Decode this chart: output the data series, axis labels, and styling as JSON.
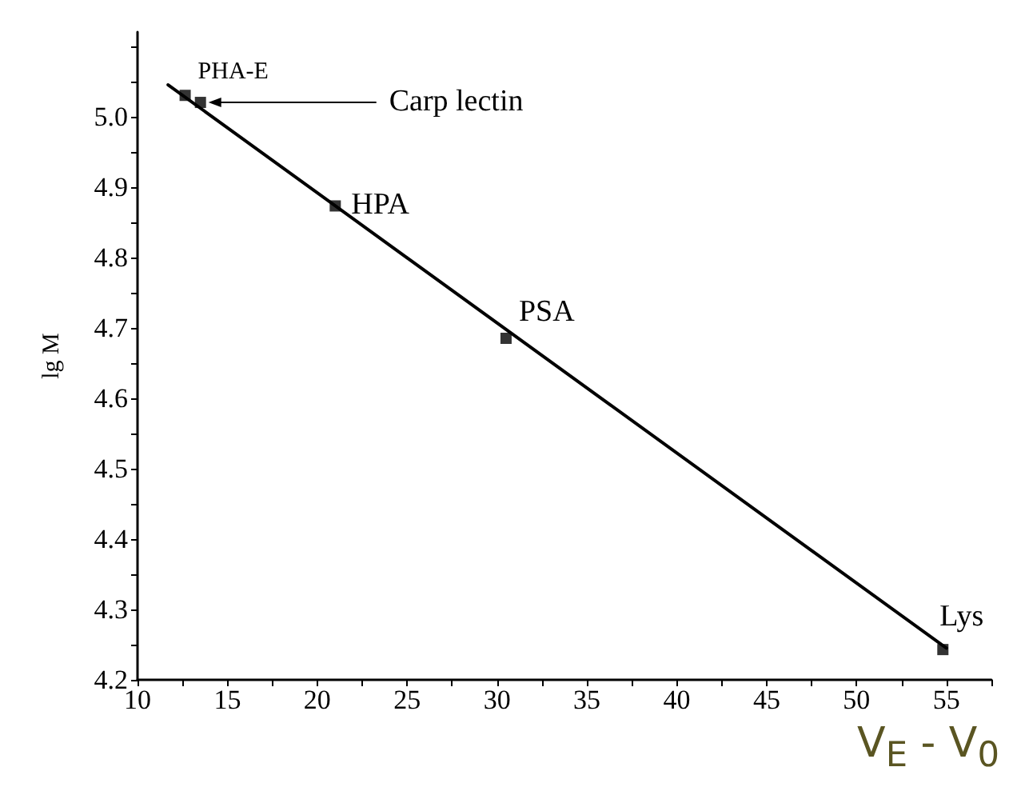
{
  "chart_data": {
    "type": "scatter",
    "xlabel": "V$_{E}$ - V$_{0}$",
    "ylabel": "lg M",
    "marker": "square",
    "grid": false,
    "xlim": [
      10,
      57.5
    ],
    "ylim": [
      4.2,
      5.12
    ],
    "xticks": [
      10,
      {
        "value": 12.5,
        "label": null
      },
      15,
      {
        "value": 17.5,
        "label": null
      },
      20,
      {
        "value": 22.5,
        "label": null
      },
      25,
      {
        "value": 27.5,
        "label": null
      },
      30,
      {
        "value": 32.5,
        "label": null
      },
      35,
      {
        "value": 37.5,
        "label": null
      },
      40,
      {
        "value": 42.5,
        "label": null
      },
      45,
      {
        "value": 47.5,
        "label": null
      },
      50,
      {
        "value": 52.5,
        "label": null
      },
      55,
      {
        "value": 57.5,
        "label": null
      }
    ],
    "yticks": [
      {
        "value": 4.2,
        "label": "4.2"
      },
      {
        "value": 4.25,
        "label": null
      },
      {
        "value": 4.3,
        "label": "4.3"
      },
      {
        "value": 4.35,
        "label": null
      },
      {
        "value": 4.4,
        "label": "4.4"
      },
      {
        "value": 4.45,
        "label": null
      },
      {
        "value": 4.5,
        "label": "4.5"
      },
      {
        "value": 4.55,
        "label": null
      },
      {
        "value": 4.6,
        "label": "4.6"
      },
      {
        "value": 4.65,
        "label": null
      },
      {
        "value": 4.7,
        "label": "4.7"
      },
      {
        "value": 4.75,
        "label": null
      },
      {
        "value": 4.8,
        "label": "4.8"
      },
      {
        "value": 4.85,
        "label": null
      },
      {
        "value": 4.9,
        "label": "4.9"
      },
      {
        "value": 4.95,
        "label": null
      },
      {
        "value": 5.0,
        "label": "5.0"
      },
      {
        "value": 5.05,
        "label": null
      },
      {
        "value": 5.1,
        "label": null
      }
    ],
    "series": [
      {
        "color": "#000000",
        "x": [
          12.65,
          13.5,
          21.0,
          30.5,
          54.8
        ],
        "values": [
          5.03,
          5.02,
          4.873,
          4.685,
          4.243
        ]
      },
      {
        "type": "line",
        "color": "#000000",
        "marker": "none",
        "line_style": "solid",
        "x": [
          11.7,
          55
        ],
        "values": [
          5.045,
          4.245
        ]
      }
    ],
    "annotations": [
      {
        "text": "PHA-E",
        "x": 12.65,
        "y": 5.03
      },
      {
        "text": "Carp lectin",
        "x": 13.5,
        "y": 5.02
      },
      {
        "text": "HPA",
        "x": 21.0,
        "y": 4.873
      },
      {
        "text": "PSA",
        "x": 30.5,
        "y": 4.685
      },
      {
        "text": "Lys",
        "x": 54.8,
        "y": 4.243
      }
    ]
  }
}
